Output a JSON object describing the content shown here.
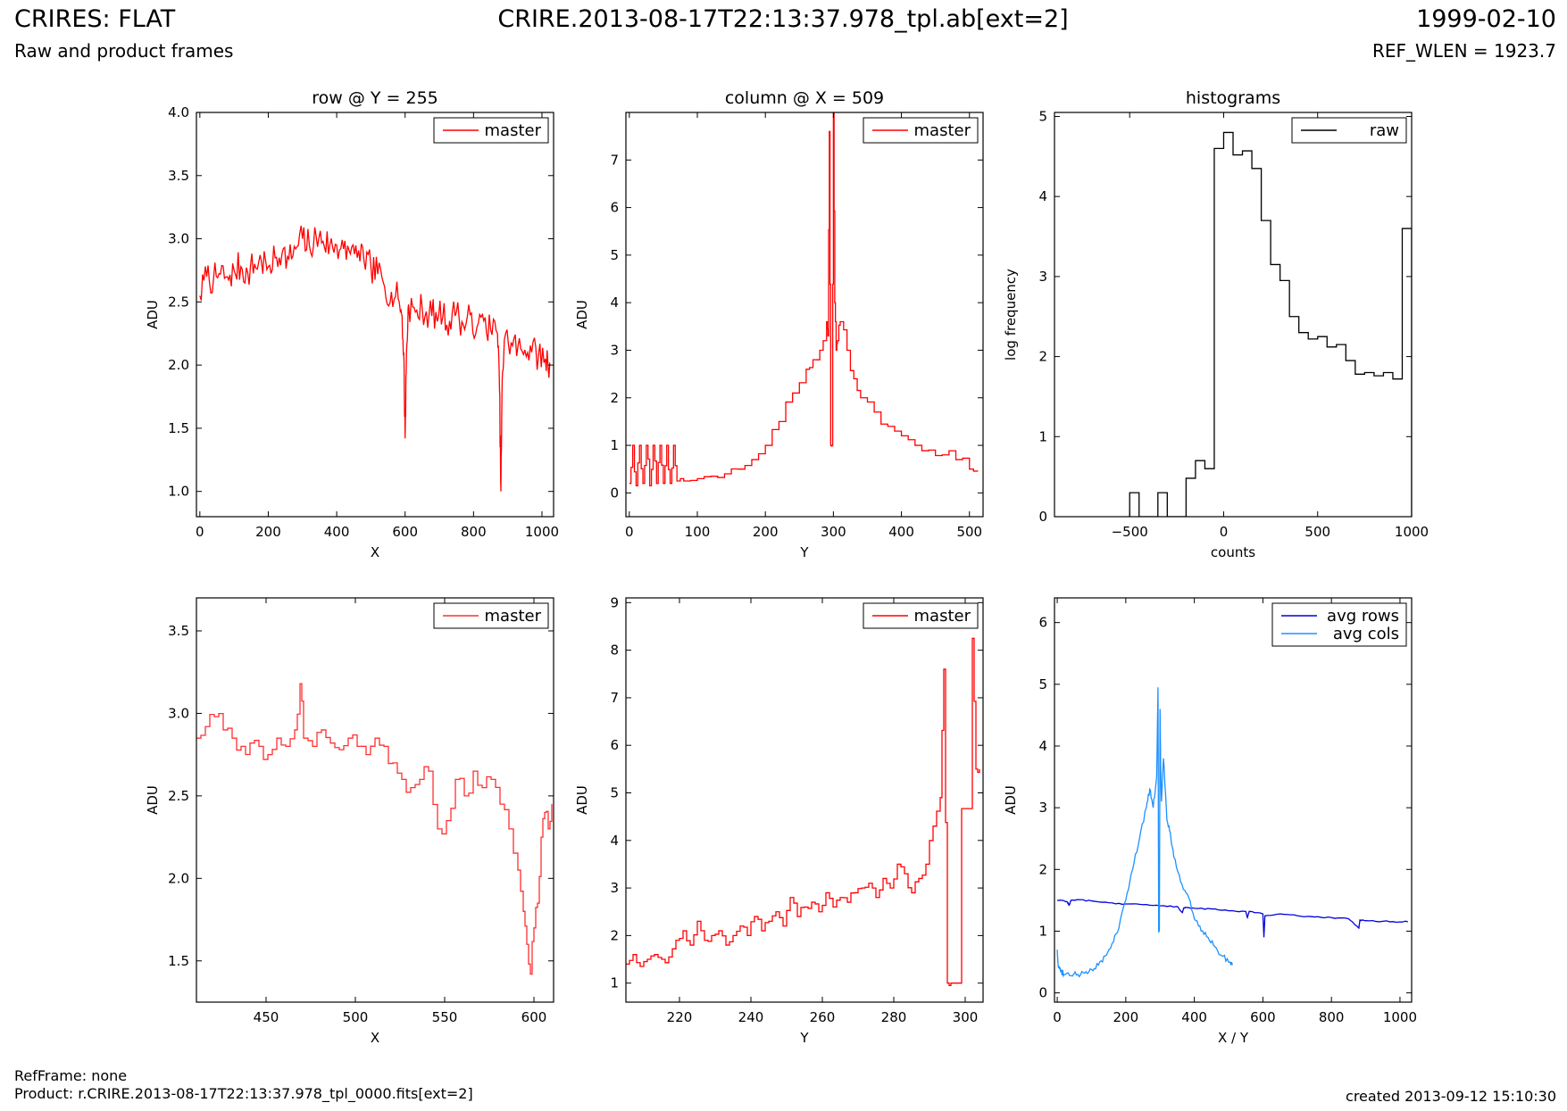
{
  "header": {
    "title": "CRIRES: FLAT",
    "subtitle": "Raw and product frames",
    "center_title": "CRIRE.2013-08-17T22:13:37.978_tpl.ab[ext=2]",
    "date": "1999-02-10",
    "ref_wlen": "REF_WLEN = 1923.7"
  },
  "footer": {
    "ref_frame": "RefFrame: none",
    "product": "Product: r.CRIRE.2013-08-17T22:13:37.978_tpl_0000.fits[ext=2]",
    "created": "created 2013-09-12 15:10:30"
  },
  "colors": {
    "master": "#ff0000",
    "raw": "#000000",
    "avg_rows": "#0000dd",
    "avg_cols": "#1e90ff"
  },
  "chart_data": [
    {
      "type": "line",
      "title": "row @ Y = 255",
      "xlabel": "X",
      "ylabel": "ADU",
      "xlim": [
        -10,
        1034
      ],
      "ylim": [
        0.8,
        4.0
      ],
      "xticks": [
        0,
        200,
        400,
        600,
        800,
        1000
      ],
      "yticks": [
        1.0,
        1.5,
        2.0,
        2.5,
        3.0,
        3.5,
        4.0
      ],
      "legend": "top-right",
      "series": [
        {
          "name": "master",
          "color": "#ff0000",
          "step": false,
          "x": [
            0,
            20,
            40,
            60,
            80,
            100,
            120,
            140,
            160,
            180,
            200,
            220,
            240,
            260,
            280,
            300,
            320,
            340,
            360,
            380,
            400,
            420,
            440,
            460,
            480,
            500,
            520,
            540,
            560,
            580,
            590,
            596,
            600,
            604,
            610,
            630,
            650,
            670,
            690,
            710,
            730,
            750,
            770,
            790,
            810,
            830,
            850,
            870,
            876,
            880,
            884,
            890,
            910,
            930,
            950,
            970,
            990,
            1010,
            1023
          ],
          "y": [
            2.55,
            2.7,
            2.68,
            2.72,
            2.7,
            2.75,
            2.78,
            2.73,
            2.8,
            2.82,
            2.78,
            2.85,
            2.88,
            2.84,
            2.92,
            3.0,
            2.95,
            3.02,
            2.98,
            2.95,
            2.95,
            2.92,
            2.88,
            2.85,
            2.82,
            2.78,
            2.72,
            2.62,
            2.58,
            2.52,
            2.4,
            2.1,
            1.42,
            2.1,
            2.48,
            2.42,
            2.45,
            2.4,
            2.42,
            2.38,
            2.35,
            2.42,
            2.32,
            2.4,
            2.3,
            2.35,
            2.28,
            2.25,
            1.8,
            1.0,
            1.9,
            2.2,
            2.18,
            2.15,
            2.12,
            2.1,
            2.08,
            2.05,
            2.02
          ],
          "noise": 0.13
        }
      ]
    },
    {
      "type": "line",
      "title": "column @ X = 509",
      "xlabel": "Y",
      "ylabel": "ADU",
      "xlim": [
        -5,
        520
      ],
      "ylim": [
        -0.5,
        8.0
      ],
      "xticks": [
        0,
        100,
        200,
        300,
        400,
        500
      ],
      "yticks": [
        0,
        1,
        2,
        3,
        4,
        5,
        6,
        7
      ],
      "legend": "top-right",
      "series": [
        {
          "name": "master",
          "color": "#ff0000",
          "step": true,
          "x": [
            0,
            5,
            10,
            15,
            20,
            25,
            30,
            35,
            40,
            45,
            50,
            55,
            60,
            65,
            70,
            80,
            100,
            120,
            140,
            160,
            180,
            200,
            220,
            240,
            260,
            270,
            280,
            290,
            292,
            294,
            296,
            298,
            300,
            302,
            304,
            306,
            310,
            320,
            330,
            340,
            360,
            380,
            400,
            420,
            440,
            460,
            480,
            500,
            512
          ],
          "y": [
            0.2,
            1.0,
            0.15,
            1.0,
            0.2,
            1.0,
            0.15,
            1.0,
            0.2,
            1.0,
            0.2,
            1.0,
            0.2,
            1.0,
            0.25,
            0.25,
            0.3,
            0.35,
            0.4,
            0.5,
            0.7,
            1.0,
            1.5,
            2.1,
            2.6,
            2.8,
            3.0,
            3.6,
            3.3,
            7.6,
            1.0,
            1.0,
            8.0,
            4.0,
            3.0,
            3.2,
            3.6,
            3.0,
            2.4,
            2.0,
            1.7,
            1.4,
            1.2,
            1.0,
            0.9,
            0.8,
            0.7,
            0.5,
            0.45
          ],
          "noise": 0.14
        }
      ]
    },
    {
      "type": "histogram",
      "title": "histograms",
      "xlabel": "counts",
      "ylabel": "log frequency",
      "xlim": [
        -900,
        1000
      ],
      "ylim": [
        0,
        5.05
      ],
      "xticks": [
        -500,
        0,
        500,
        1000
      ],
      "xtick_labels": [
        "−500",
        "0",
        "500",
        "1000"
      ],
      "yticks": [
        0,
        1,
        2,
        3,
        4,
        5
      ],
      "legend": "top-right",
      "series": [
        {
          "name": "raw",
          "color": "#000000",
          "edges": [
            -500,
            -450,
            -400,
            -350,
            -300,
            -250,
            -200,
            -150,
            -100,
            -50,
            0,
            50,
            100,
            150,
            200,
            250,
            300,
            350,
            400,
            450,
            500,
            550,
            600,
            650,
            700,
            750,
            800,
            850,
            900,
            950,
            1000
          ],
          "values": [
            0.3,
            0,
            0,
            0.3,
            0,
            0,
            0.48,
            0.7,
            0.6,
            4.6,
            4.8,
            4.52,
            4.57,
            4.35,
            3.7,
            3.15,
            2.95,
            2.5,
            2.3,
            2.22,
            2.25,
            2.12,
            2.15,
            1.95,
            1.78,
            1.8,
            1.76,
            1.8,
            1.72,
            3.6
          ]
        }
      ]
    },
    {
      "type": "line",
      "title": "",
      "xlabel": "X",
      "ylabel": "ADU",
      "xlim": [
        411,
        611
      ],
      "ylim": [
        1.25,
        3.7
      ],
      "xticks": [
        450,
        500,
        550,
        600
      ],
      "yticks": [
        1.5,
        2.0,
        2.5,
        3.0,
        3.5
      ],
      "legend": "top-right",
      "series": [
        {
          "name": "master",
          "color": "#ff3030",
          "step": true,
          "x": [
            411,
            416,
            421,
            426,
            431,
            436,
            441,
            446,
            451,
            456,
            461,
            466,
            469,
            471,
            476,
            481,
            486,
            491,
            496,
            501,
            506,
            511,
            516,
            521,
            526,
            531,
            536,
            541,
            546,
            551,
            556,
            561,
            566,
            571,
            576,
            581,
            586,
            591,
            594,
            596,
            598,
            600,
            602,
            604,
            606,
            608,
            610
          ],
          "y": [
            2.85,
            2.92,
            2.98,
            2.9,
            2.85,
            2.8,
            2.82,
            2.8,
            2.75,
            2.85,
            2.8,
            2.9,
            3.18,
            2.85,
            2.8,
            2.9,
            2.82,
            2.78,
            2.85,
            2.8,
            2.75,
            2.85,
            2.8,
            2.7,
            2.6,
            2.55,
            2.6,
            2.65,
            2.3,
            2.35,
            2.6,
            2.5,
            2.65,
            2.55,
            2.6,
            2.45,
            2.3,
            2.05,
            1.8,
            1.6,
            1.42,
            1.7,
            1.85,
            2.25,
            2.4,
            2.3,
            2.45
          ],
          "noise": 0.06
        }
      ]
    },
    {
      "type": "line",
      "title": "",
      "xlabel": "Y",
      "ylabel": "ADU",
      "xlim": [
        205,
        305
      ],
      "ylim": [
        0.6,
        9.1
      ],
      "xticks": [
        220,
        240,
        260,
        280,
        300
      ],
      "yticks": [
        1,
        2,
        3,
        4,
        5,
        6,
        7,
        8,
        9
      ],
      "legend": "top-right",
      "series": [
        {
          "name": "master",
          "color": "#ff0000",
          "step": true,
          "x": [
            205,
            207,
            209,
            211,
            213,
            215,
            217,
            219,
            221,
            223,
            225,
            227,
            229,
            231,
            233,
            235,
            237,
            239,
            241,
            243,
            245,
            247,
            249,
            251,
            253,
            255,
            257,
            259,
            261,
            263,
            265,
            267,
            269,
            271,
            273,
            275,
            277,
            279,
            281,
            283,
            285,
            287,
            289,
            291,
            293,
            294,
            295,
            296,
            302,
            303,
            304
          ],
          "y": [
            1.4,
            1.6,
            1.35,
            1.5,
            1.6,
            1.5,
            1.55,
            1.9,
            2.1,
            1.8,
            2.3,
            1.9,
            2.0,
            2.1,
            1.8,
            2.0,
            2.2,
            2.0,
            2.4,
            2.1,
            2.3,
            2.5,
            2.2,
            2.8,
            2.4,
            2.6,
            2.7,
            2.5,
            2.9,
            2.6,
            2.8,
            2.7,
            2.9,
            3.0,
            3.1,
            2.8,
            3.2,
            3.0,
            3.5,
            3.3,
            2.9,
            3.2,
            3.5,
            4.3,
            4.9,
            7.6,
            1.0,
            1.0,
            8.25,
            5.5,
            5.5
          ],
          "noise": 0.1
        }
      ]
    },
    {
      "type": "line",
      "title": "",
      "xlabel": "X / Y",
      "ylabel": "ADU",
      "xlim": [
        -8,
        1034
      ],
      "ylim": [
        -0.15,
        6.4
      ],
      "xticks": [
        0,
        200,
        400,
        600,
        800,
        1000
      ],
      "yticks": [
        0,
        1,
        2,
        3,
        4,
        5,
        6
      ],
      "legend": "top-right",
      "series": [
        {
          "name": "avg rows",
          "color": "#0000dd",
          "step": false,
          "x": [
            0,
            20,
            30,
            35,
            40,
            60,
            100,
            150,
            200,
            250,
            300,
            350,
            365,
            370,
            380,
            400,
            450,
            500,
            550,
            555,
            560,
            600,
            603,
            606,
            650,
            700,
            750,
            800,
            850,
            880,
            883,
            886,
            900,
            950,
            1000,
            1023
          ],
          "y": [
            1.5,
            1.49,
            1.47,
            1.42,
            1.5,
            1.51,
            1.49,
            1.46,
            1.44,
            1.43,
            1.41,
            1.4,
            1.3,
            1.38,
            1.38,
            1.37,
            1.36,
            1.33,
            1.32,
            1.22,
            1.32,
            1.28,
            0.9,
            1.25,
            1.28,
            1.25,
            1.23,
            1.22,
            1.2,
            1.05,
            1.18,
            1.18,
            1.17,
            1.16,
            1.15,
            1.15
          ],
          "noise": 0.01
        },
        {
          "name": "avg cols",
          "color": "#1e90ff",
          "step": false,
          "x": [
            0,
            2,
            5,
            10,
            20,
            40,
            60,
            80,
            100,
            120,
            140,
            160,
            180,
            200,
            220,
            240,
            260,
            270,
            280,
            290,
            294,
            296,
            298,
            300,
            302,
            304,
            310,
            320,
            330,
            340,
            360,
            380,
            400,
            420,
            440,
            460,
            480,
            500,
            511
          ],
          "y": [
            0.7,
            0.5,
            0.4,
            0.35,
            0.3,
            0.28,
            0.3,
            0.32,
            0.38,
            0.45,
            0.6,
            0.8,
            1.05,
            1.5,
            2.0,
            2.5,
            3.0,
            3.3,
            3.0,
            3.5,
            4.95,
            1.0,
            1.0,
            4.6,
            3.6,
            3.1,
            3.8,
            2.8,
            2.6,
            2.2,
            1.8,
            1.6,
            1.2,
            1.0,
            0.9,
            0.75,
            0.6,
            0.5,
            0.45
          ],
          "noise": 0.05
        }
      ]
    }
  ]
}
